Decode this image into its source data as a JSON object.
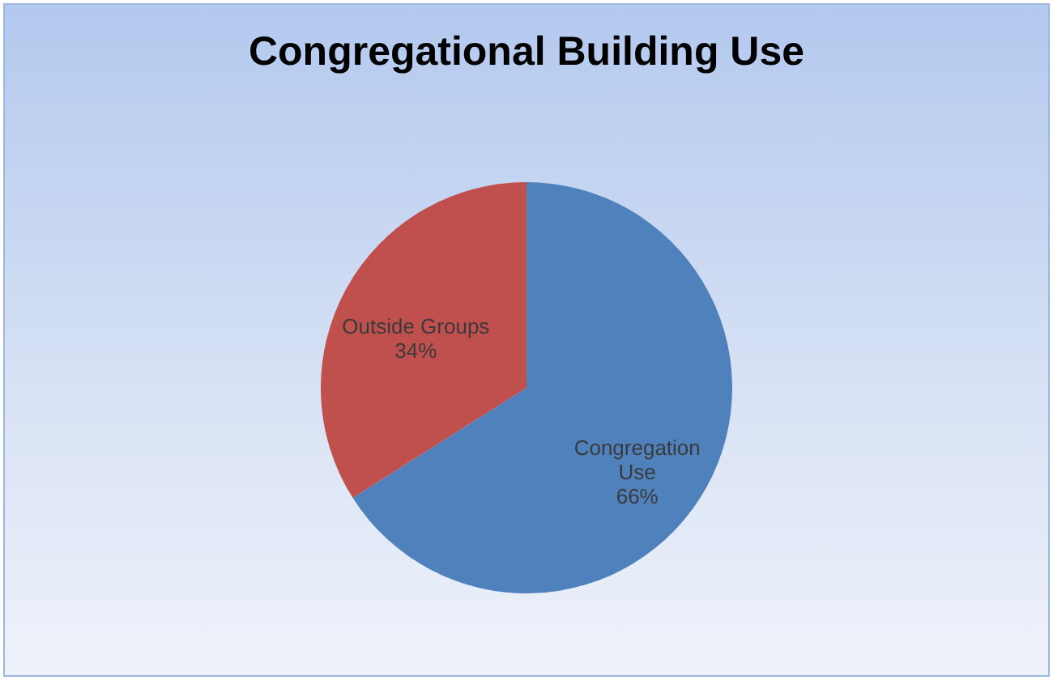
{
  "chart_data": {
    "type": "pie",
    "title": "Congregational Building Use",
    "categories": [
      "Congregation Use",
      "Outside Groups"
    ],
    "values": [
      66,
      34
    ],
    "colors": [
      "#4f81bd",
      "#c0504d"
    ],
    "value_labels": [
      "66%",
      "34%"
    ]
  }
}
